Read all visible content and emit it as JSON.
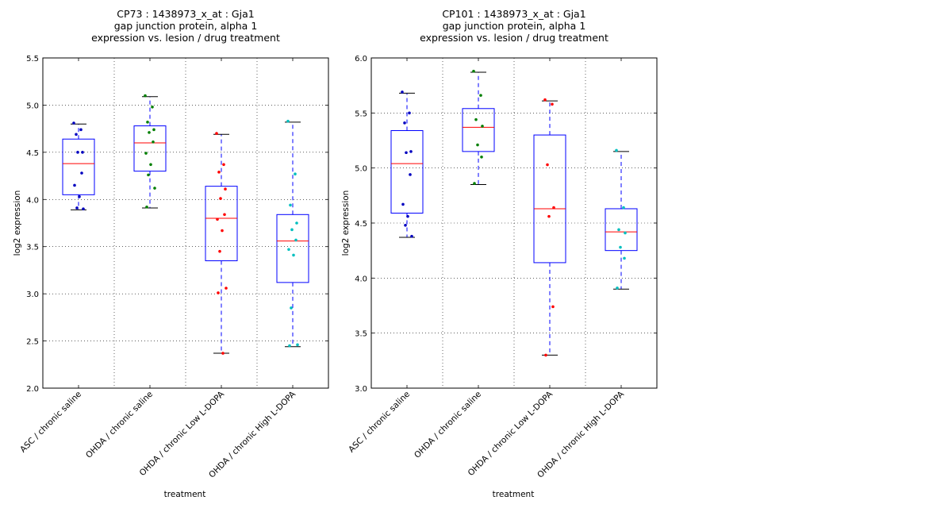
{
  "chart_data": [
    {
      "type": "box",
      "title": [
        "CP73 : 1438973_x_at : Gja1",
        "gap junction protein, alpha 1",
        "expression vs. lesion / drug treatment"
      ],
      "xlabel": "treatment",
      "ylabel": "log2 expression",
      "ylim": [
        2.0,
        5.5
      ],
      "yticks": [
        "2.0",
        "2.5",
        "3.0",
        "3.5",
        "4.0",
        "4.5",
        "5.0",
        "5.5"
      ],
      "grid": true,
      "categories": [
        "ASC / chronic saline",
        "OHDA / chronic saline",
        "OHDA / chronic Low L-DOPA",
        "OHDA / chronic High L-DOPA"
      ],
      "colors": [
        "#0000bf",
        "#007f00",
        "#ff0000",
        "#00bfbf"
      ],
      "boxes": [
        {
          "whisker_low": 3.89,
          "q1": 4.05,
          "median": 4.38,
          "q3": 4.64,
          "whisker_high": 4.8,
          "points": [
            4.81,
            4.74,
            4.69,
            4.5,
            4.5,
            4.28,
            4.15,
            4.03,
            3.91,
            3.9
          ]
        },
        {
          "whisker_low": 3.91,
          "q1": 4.3,
          "median": 4.6,
          "q3": 4.78,
          "whisker_high": 5.09,
          "points": [
            5.1,
            4.98,
            4.82,
            4.74,
            4.71,
            4.61,
            4.49,
            4.37,
            4.26,
            4.12,
            3.92
          ]
        },
        {
          "whisker_low": 2.37,
          "q1": 3.35,
          "median": 3.8,
          "q3": 4.14,
          "whisker_high": 4.69,
          "points": [
            4.7,
            4.37,
            4.29,
            4.11,
            4.01,
            3.84,
            3.79,
            3.67,
            3.45,
            3.06,
            3.01,
            2.37
          ]
        },
        {
          "whisker_low": 2.44,
          "q1": 3.12,
          "median": 3.56,
          "q3": 3.84,
          "whisker_high": 4.82,
          "points": [
            4.83,
            4.27,
            3.94,
            3.75,
            3.68,
            3.57,
            3.47,
            3.41,
            2.85,
            2.46,
            2.45
          ]
        }
      ]
    },
    {
      "type": "box",
      "title": [
        "CP101 : 1438973_x_at : Gja1",
        "gap junction protein, alpha 1",
        "expression vs. lesion / drug treatment"
      ],
      "xlabel": "treatment",
      "ylabel": "log2 expression",
      "ylim": [
        3.0,
        6.0
      ],
      "yticks": [
        "3.0",
        "3.5",
        "4.0",
        "4.5",
        "5.0",
        "5.5",
        "6.0"
      ],
      "grid": true,
      "categories": [
        "ASC / chronic saline",
        "OHDA / chronic saline",
        "OHDA / chronic Low L-DOPA",
        "OHDA / chronic High L-DOPA"
      ],
      "colors": [
        "#0000bf",
        "#007f00",
        "#ff0000",
        "#00bfbf"
      ],
      "boxes": [
        {
          "whisker_low": 4.37,
          "q1": 4.59,
          "median": 5.04,
          "q3": 5.34,
          "whisker_high": 5.68,
          "points": [
            5.69,
            5.5,
            5.41,
            5.15,
            5.14,
            4.94,
            4.67,
            4.56,
            4.48,
            4.38
          ]
        },
        {
          "whisker_low": 4.85,
          "q1": 5.15,
          "median": 5.37,
          "q3": 5.54,
          "whisker_high": 5.87,
          "points": [
            5.88,
            5.66,
            5.44,
            5.38,
            5.21,
            5.1,
            4.86
          ]
        },
        {
          "whisker_low": 3.3,
          "q1": 4.14,
          "median": 4.63,
          "q3": 5.3,
          "whisker_high": 5.61,
          "points": [
            5.62,
            5.58,
            5.03,
            4.64,
            4.56,
            3.74,
            3.3
          ]
        },
        {
          "whisker_low": 3.9,
          "q1": 4.25,
          "median": 4.42,
          "q3": 4.63,
          "whisker_high": 5.15,
          "points": [
            5.16,
            4.64,
            4.44,
            4.41,
            4.28,
            4.18,
            3.91
          ]
        }
      ]
    }
  ]
}
